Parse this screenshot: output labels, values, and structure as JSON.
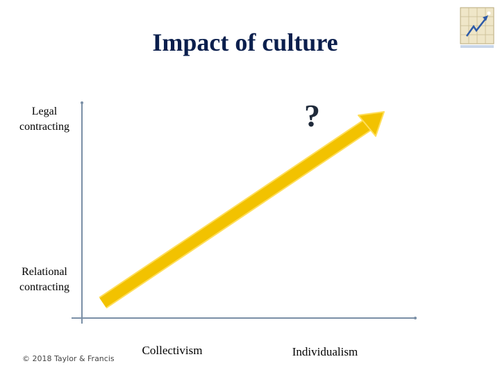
{
  "title": "Impact of culture",
  "y_axis": {
    "top_label": "Legal contracting",
    "bottom_label": "Relational contracting"
  },
  "x_axis": {
    "left_label": "Collectivism",
    "right_label": "Individualism"
  },
  "arrow_annotation": "?",
  "footer": {
    "copyright": "© 2018 Taylor & Francis"
  },
  "logo": {
    "icon": "rising-arrow-grid-logo-icon"
  },
  "colors": {
    "title": "#0b1f4d",
    "axis": "#7a8fa6",
    "arrow": "#f2c200",
    "arrow_edge": "#ffde59"
  }
}
